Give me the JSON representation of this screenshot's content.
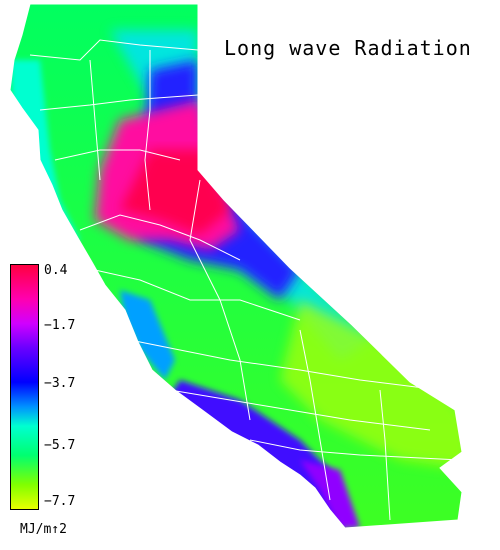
{
  "title": "Long wave Radiation",
  "colorbar": {
    "ticks": [
      "0.4",
      "−1.7",
      "−3.7",
      "−5.7",
      "−7.7"
    ],
    "min": -7.7,
    "max": 0.4,
    "units": "MJ/m↑2",
    "colors": [
      "#ff0040",
      "#ff00b0",
      "#d000ff",
      "#6a00ff",
      "#0000ff",
      "#0090ff",
      "#00ffd0",
      "#00ff70",
      "#80ff00",
      "#e8ff00"
    ]
  },
  "region": "California",
  "boundaries_color": "#ffffff"
}
